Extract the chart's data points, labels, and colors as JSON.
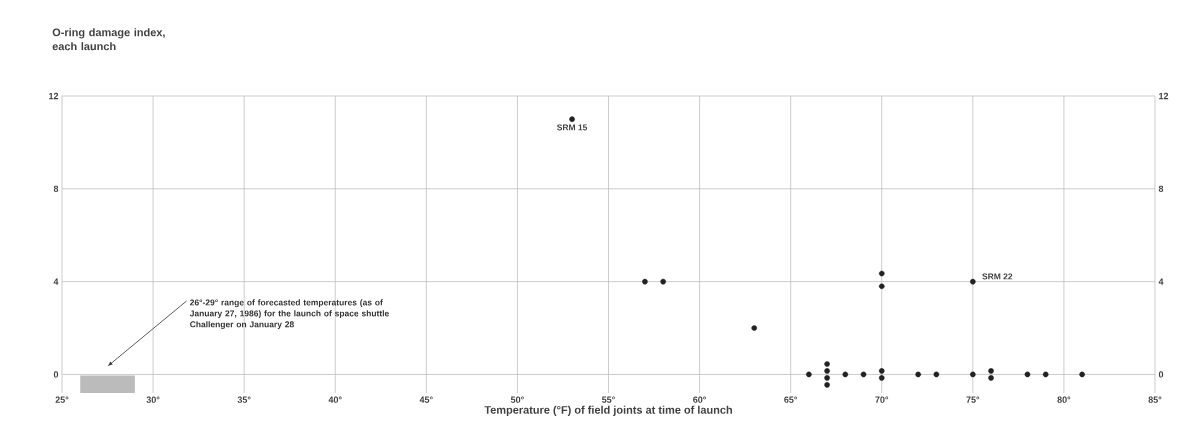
{
  "chart_data": {
    "type": "scatter",
    "ylabel": "O-ring damage index, each launch",
    "xlabel": "Temperature (°F) of field joints at time of launch",
    "x": [
      53,
      57,
      58,
      63,
      70,
      70,
      75,
      66,
      67,
      67,
      67,
      67,
      68,
      69,
      70,
      70,
      72,
      73,
      75,
      76,
      76,
      78,
      79,
      81
    ],
    "values": [
      11,
      4,
      4,
      2,
      4.35,
      3.8,
      4,
      0,
      0.45,
      0.15,
      -0.15,
      -0.45,
      0,
      0,
      0.15,
      -0.15,
      0,
      0,
      0,
      0.15,
      -0.15,
      0,
      0,
      0
    ],
    "color": "#222222",
    "xlim": [
      25,
      85
    ],
    "xticks": [
      {
        "value": 25,
        "label": "25°"
      },
      {
        "value": 30,
        "label": "30°"
      },
      {
        "value": 35,
        "label": "35°"
      },
      {
        "value": 40,
        "label": "40°"
      },
      {
        "value": 45,
        "label": "45°"
      },
      {
        "value": 50,
        "label": "50°"
      },
      {
        "value": 55,
        "label": "55°"
      },
      {
        "value": 60,
        "label": "60°"
      },
      {
        "value": 65,
        "label": "65°"
      },
      {
        "value": 70,
        "label": "70°"
      },
      {
        "value": 75,
        "label": "75°"
      },
      {
        "value": 80,
        "label": "80°"
      },
      {
        "value": 85,
        "label": "85°"
      }
    ],
    "ylim": [
      -0.8,
      12
    ],
    "yticks": [
      0,
      4,
      8,
      12
    ],
    "y2lim": [
      -0.8,
      12
    ],
    "y2ticks": [
      0,
      4,
      8,
      12
    ],
    "grid": true,
    "bands": [
      {
        "axis": "x",
        "from": 26,
        "to": 29,
        "color": "#bbbbbb"
      }
    ],
    "annotations": [
      {
        "text": "SRM 15",
        "x": 53,
        "y": 11
      },
      {
        "text": "SRM 22",
        "x": 75,
        "y": 4
      },
      "26°-29° range of forecasted temperatures (as of January 27, 1986) for the launch of space shuttle Challenger on January 28"
    ]
  }
}
